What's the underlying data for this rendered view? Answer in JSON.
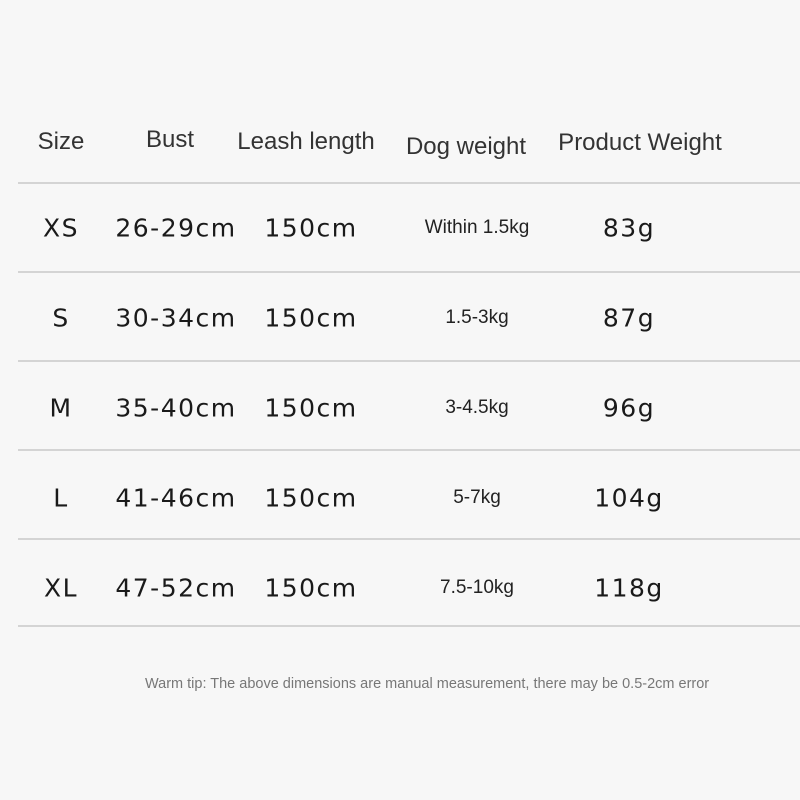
{
  "headers": [
    "Size",
    "Bust",
    "Leash length",
    "Dog weight",
    "Product Weight"
  ],
  "rows": [
    {
      "size": "XS",
      "bust": "26-29cm",
      "leash": "150cm",
      "dog_weight": "Within 1.5kg",
      "product_weight": "83g"
    },
    {
      "size": "S",
      "bust": "30-34cm",
      "leash": "150cm",
      "dog_weight": "1.5-3kg",
      "product_weight": "87g"
    },
    {
      "size": "M",
      "bust": "35-40cm",
      "leash": "150cm",
      "dog_weight": "3-4.5kg",
      "product_weight": "96g"
    },
    {
      "size": "L",
      "bust": "41-46cm",
      "leash": "150cm",
      "dog_weight": "5-7kg",
      "product_weight": "104g"
    },
    {
      "size": "XL",
      "bust": "47-52cm",
      "leash": "150cm",
      "dog_weight": "7.5-10kg",
      "product_weight": "118g"
    }
  ],
  "tip": "Warm tip: The above dimensions are manual measurement, there may be 0.5-2cm error"
}
